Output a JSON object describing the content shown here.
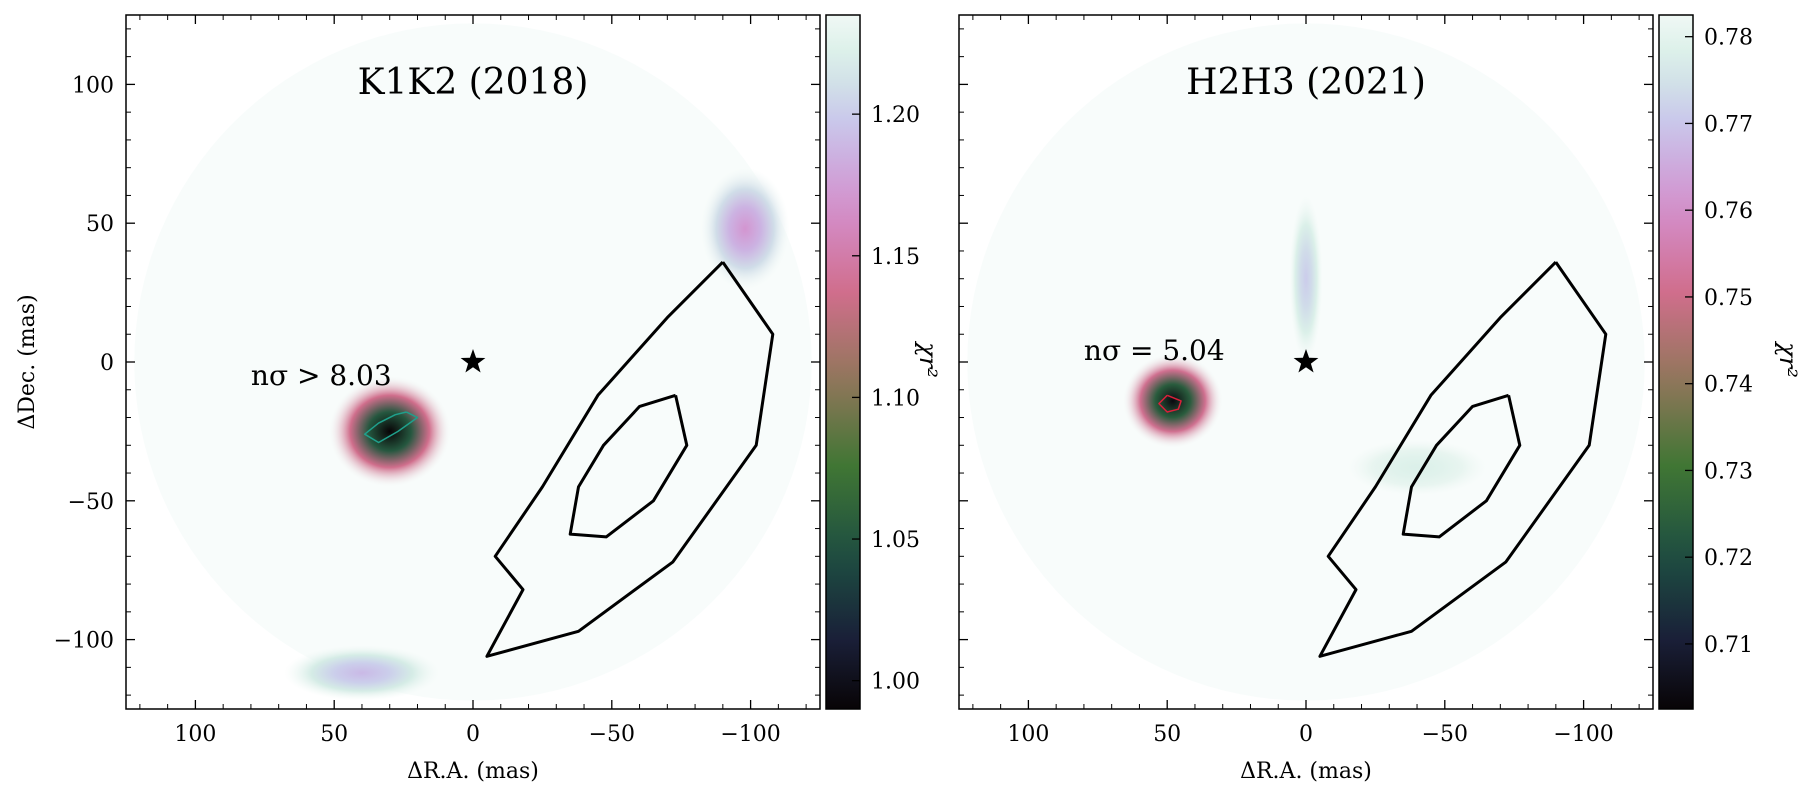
{
  "chart_data": [
    {
      "type": "heatmap",
      "title": "K1K2 (2018)",
      "xlabel": "ΔR.A. (mas)",
      "ylabel": "ΔDec. (mas)",
      "xlim": [
        125,
        -125
      ],
      "ylim": [
        -125,
        125
      ],
      "xticks": [
        100,
        50,
        0,
        -50,
        -100
      ],
      "xtick_labels": [
        "100",
        "50",
        "0",
        "−50",
        "−100"
      ],
      "yticks": [
        100,
        50,
        0,
        -50,
        -100
      ],
      "ytick_labels": [
        "100",
        "50",
        "0",
        "−50",
        "−100"
      ],
      "annotation": {
        "text": "nσ > 8.03",
        "x": 80,
        "y": -5
      },
      "star": {
        "x": 0,
        "y": 0
      },
      "colorbar": {
        "label": "χr²",
        "range": [
          0.99,
          1.235
        ],
        "ticks": [
          1.0,
          1.05,
          1.1,
          1.15,
          1.2
        ],
        "tick_labels": [
          "1.00",
          "1.05",
          "1.10",
          "1.15",
          "1.20"
        ]
      },
      "blobs": [
        {
          "x": 30,
          "y": -25,
          "rx": 22,
          "ry": 20,
          "value": 0.99,
          "note": "minimum"
        },
        {
          "x": -98,
          "y": 48,
          "rx": 16,
          "ry": 22,
          "value": 1.17
        },
        {
          "x": 40,
          "y": -112,
          "rx": 28,
          "ry": 10,
          "value": 1.19
        }
      ],
      "contours": [
        {
          "name": "outer",
          "points": [
            [
              -90,
              36
            ],
            [
              -108,
              10
            ],
            [
              -102,
              -30
            ],
            [
              -72,
              -72
            ],
            [
              -38,
              -97
            ],
            [
              -5,
              -106
            ],
            [
              -18,
              -82
            ],
            [
              -8,
              -70
            ],
            [
              -25,
              -45
            ],
            [
              -45,
              -12
            ],
            [
              -70,
              16
            ],
            [
              -90,
              36
            ]
          ]
        },
        {
          "name": "inner",
          "points": [
            [
              -73,
              -12
            ],
            [
              -77,
              -30
            ],
            [
              -65,
              -50
            ],
            [
              -48,
              -63
            ],
            [
              -35,
              -62
            ],
            [
              -38,
              -45
            ],
            [
              -47,
              -30
            ],
            [
              -60,
              -16
            ],
            [
              -73,
              -12
            ]
          ]
        },
        {
          "name": "detection",
          "color": "#1fa08c",
          "points": [
            [
              24,
              -18
            ],
            [
              20,
              -20
            ],
            [
              27,
              -25
            ],
            [
              34,
              -29
            ],
            [
              39,
              -26
            ],
            [
              34,
              -22
            ],
            [
              28,
              -19
            ],
            [
              24,
              -18
            ]
          ]
        }
      ]
    },
    {
      "type": "heatmap",
      "title": "H2H3 (2021)",
      "xlabel": "ΔR.A. (mas)",
      "ylabel": "",
      "xlim": [
        125,
        -125
      ],
      "ylim": [
        -125,
        125
      ],
      "xticks": [
        100,
        50,
        0,
        -50,
        -100
      ],
      "xtick_labels": [
        "100",
        "50",
        "0",
        "−50",
        "−100"
      ],
      "yticks": [
        100,
        50,
        0,
        -50,
        -100
      ],
      "ytick_labels": [
        "",
        "",
        "",
        "",
        ""
      ],
      "annotation": {
        "text": "nσ = 5.04",
        "x": 80,
        "y": 4
      },
      "star": {
        "x": 0,
        "y": 0
      },
      "colorbar": {
        "label": "χr²",
        "range": [
          0.7025,
          0.7825
        ],
        "ticks": [
          0.71,
          0.72,
          0.73,
          0.74,
          0.75,
          0.76,
          0.77,
          0.78
        ],
        "tick_labels": [
          "0.71",
          "0.72",
          "0.73",
          "0.74",
          "0.75",
          "0.76",
          "0.77",
          "0.78"
        ]
      },
      "blobs": [
        {
          "x": 48,
          "y": -14,
          "rx": 18,
          "ry": 17,
          "value": 0.704,
          "note": "minimum"
        },
        {
          "x": 0,
          "y": 30,
          "rx": 6,
          "ry": 30,
          "value": 0.771
        },
        {
          "x": -40,
          "y": -38,
          "rx": 25,
          "ry": 10,
          "value": 0.778
        }
      ],
      "contours": [
        {
          "name": "outer",
          "points": [
            [
              -90,
              36
            ],
            [
              -108,
              10
            ],
            [
              -102,
              -30
            ],
            [
              -72,
              -72
            ],
            [
              -38,
              -97
            ],
            [
              -5,
              -106
            ],
            [
              -18,
              -82
            ],
            [
              -8,
              -70
            ],
            [
              -25,
              -45
            ],
            [
              -45,
              -12
            ],
            [
              -70,
              16
            ],
            [
              -90,
              36
            ]
          ]
        },
        {
          "name": "inner",
          "points": [
            [
              -73,
              -12
            ],
            [
              -77,
              -30
            ],
            [
              -65,
              -50
            ],
            [
              -48,
              -63
            ],
            [
              -35,
              -62
            ],
            [
              -38,
              -45
            ],
            [
              -47,
              -30
            ],
            [
              -60,
              -16
            ],
            [
              -73,
              -12
            ]
          ]
        },
        {
          "name": "detection",
          "color": "#d9203a",
          "points": [
            [
              50,
              -12
            ],
            [
              45,
              -14
            ],
            [
              46,
              -17
            ],
            [
              50,
              -18
            ],
            [
              53,
              -15
            ],
            [
              50,
              -12
            ]
          ]
        }
      ]
    }
  ]
}
